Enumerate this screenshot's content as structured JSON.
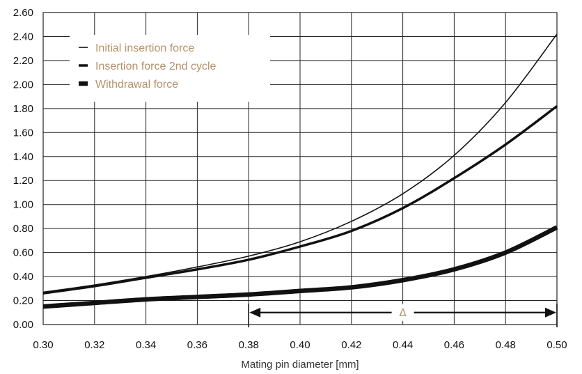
{
  "chart_data": {
    "type": "line",
    "xlabel": "Mating pin diameter [mm]",
    "ylabel": "",
    "xlim": [
      0.3,
      0.5
    ],
    "ylim": [
      0.0,
      2.6
    ],
    "x_ticks": [
      "0.30",
      "0.32",
      "0.34",
      "0.36",
      "0.38",
      "0.40",
      "0.42",
      "0.44",
      "0.46",
      "0.48",
      "0.50"
    ],
    "y_ticks": [
      "0.00",
      "0.20",
      "0.40",
      "0.60",
      "0.80",
      "1.00",
      "1.20",
      "1.40",
      "1.60",
      "1.80",
      "2.00",
      "2.20",
      "2.40",
      "2.60"
    ],
    "grid": true,
    "legend_position": "top-left",
    "series": [
      {
        "name": "Initial insertion force",
        "line_weight": "thin",
        "x": [
          0.3,
          0.32,
          0.34,
          0.36,
          0.38,
          0.4,
          0.42,
          0.44,
          0.46,
          0.48,
          0.5
        ],
        "values": [
          0.27,
          0.33,
          0.4,
          0.48,
          0.57,
          0.69,
          0.86,
          1.09,
          1.41,
          1.85,
          2.42
        ]
      },
      {
        "name": "Insertion force 2nd cycle",
        "line_weight": "medium",
        "x": [
          0.3,
          0.32,
          0.34,
          0.36,
          0.38,
          0.4,
          0.42,
          0.44,
          0.46,
          0.48,
          0.5
        ],
        "values": [
          0.26,
          0.32,
          0.39,
          0.46,
          0.54,
          0.65,
          0.78,
          0.97,
          1.22,
          1.5,
          1.82
        ]
      },
      {
        "name": "Withdrawal force",
        "line_weight": "thick",
        "x": [
          0.3,
          0.32,
          0.34,
          0.36,
          0.38,
          0.4,
          0.42,
          0.44,
          0.46,
          0.48,
          0.5
        ],
        "values": [
          0.15,
          0.18,
          0.21,
          0.23,
          0.25,
          0.28,
          0.31,
          0.37,
          0.46,
          0.6,
          0.81
        ]
      }
    ],
    "annotation": {
      "label": "Δ",
      "x_start": 0.38,
      "x_end": 0.5,
      "y": 0.1
    }
  }
}
